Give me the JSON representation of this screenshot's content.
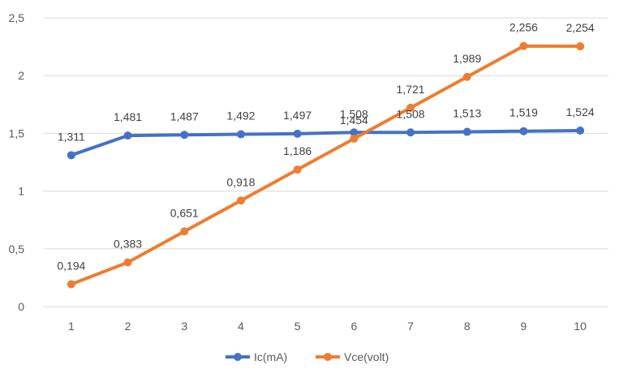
{
  "chart_data": {
    "type": "line",
    "title": "",
    "xlabel": "",
    "ylabel": "",
    "categories": [
      "1",
      "2",
      "3",
      "4",
      "5",
      "6",
      "7",
      "8",
      "9",
      "10"
    ],
    "ylim": [
      0,
      2.5
    ],
    "yticks": [
      "0",
      "0,5",
      "1",
      "1,5",
      "2",
      "2,5"
    ],
    "ytick_values": [
      0,
      0.5,
      1,
      1.5,
      2,
      2.5
    ],
    "grid": true,
    "legend_position": "bottom",
    "series": [
      {
        "name": "Ic(mA)",
        "color": "#4472c4",
        "values": [
          1.311,
          1.481,
          1.487,
          1.492,
          1.497,
          1.508,
          1.508,
          1.513,
          1.519,
          1.524
        ],
        "labels": [
          "1,311",
          "1,481",
          "1,487",
          "1,492",
          "1,497",
          "1,508",
          "1,508",
          "1,513",
          "1,519",
          "1,524"
        ]
      },
      {
        "name": "Vce(volt)",
        "color": "#ed7d31",
        "values": [
          0.194,
          0.383,
          0.651,
          0.918,
          1.186,
          1.454,
          1.721,
          1.989,
          2.256,
          2.254
        ],
        "labels": [
          "0,194",
          "0,383",
          "0,651",
          "0,918",
          "1,186",
          "1,454",
          "1,721",
          "1,989",
          "2,256",
          "2,254"
        ]
      }
    ]
  }
}
